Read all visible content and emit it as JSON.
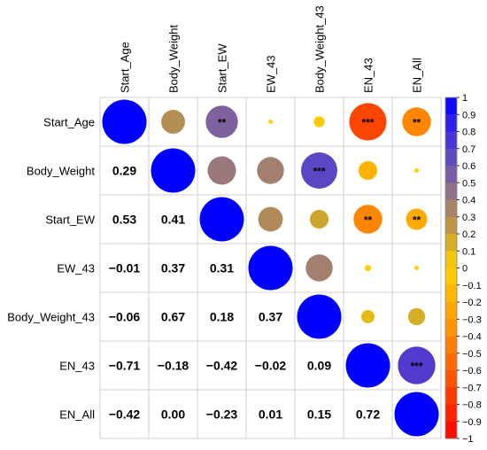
{
  "chart_data": {
    "type": "heatmap",
    "variables": [
      "Start_Age",
      "Body_Weight",
      "Start_EW",
      "EW_43",
      "Body_Weight_43",
      "EN_43",
      "EN_All"
    ],
    "matrix": [
      [
        1.0,
        0.29,
        0.53,
        -0.01,
        -0.06,
        -0.71,
        -0.42
      ],
      [
        0.29,
        1.0,
        0.41,
        0.37,
        0.67,
        -0.18,
        0.0
      ],
      [
        0.53,
        0.41,
        1.0,
        0.31,
        0.18,
        -0.42,
        -0.23
      ],
      [
        -0.01,
        0.37,
        0.31,
        1.0,
        0.37,
        -0.02,
        0.01
      ],
      [
        -0.06,
        0.67,
        0.18,
        0.37,
        1.0,
        0.09,
        0.15
      ],
      [
        -0.71,
        -0.18,
        -0.42,
        -0.02,
        0.09,
        1.0,
        0.72
      ],
      [
        -0.42,
        0.0,
        -0.23,
        0.01,
        0.15,
        0.72,
        1.0
      ]
    ],
    "lower_labels": [
      [
        null,
        null,
        null,
        null,
        null,
        null,
        null
      ],
      [
        "0.29",
        null,
        null,
        null,
        null,
        null,
        null
      ],
      [
        "0.53",
        "0.41",
        null,
        null,
        null,
        null,
        null
      ],
      [
        "−0.01",
        "0.37",
        "0.31",
        null,
        null,
        null,
        null
      ],
      [
        "−0.06",
        "0.67",
        "0.18",
        "0.37",
        null,
        null,
        null
      ],
      [
        "−0.71",
        "−0.18",
        "−0.42",
        "−0.02",
        "0.09",
        null,
        null
      ],
      [
        "−0.42",
        "0.00",
        "−0.23",
        "0.01",
        "0.15",
        "0.72",
        null
      ]
    ],
    "significance": [
      [
        "",
        "",
        "**",
        "",
        "",
        "***",
        "**"
      ],
      [
        "",
        "",
        "",
        "",
        "***",
        "",
        ""
      ],
      [
        "",
        "",
        "",
        "",
        "",
        "**",
        "**"
      ],
      [
        "",
        "",
        "",
        "",
        "",
        "",
        ""
      ],
      [
        "",
        "",
        "",
        "",
        "",
        "",
        ""
      ],
      [
        "",
        "",
        "",
        "",
        "",
        "",
        "***"
      ],
      [
        "",
        "",
        "",
        "",
        "",
        "",
        ""
      ]
    ],
    "colorbar": {
      "ticks": [
        "1",
        "0.9",
        "0.8",
        "0.7",
        "0.6",
        "0.5",
        "0.4",
        "0.3",
        "0.2",
        "0.1",
        "0",
        "−0.1",
        "−0.2",
        "−0.3",
        "−0.4",
        "−0.5",
        "−0.6",
        "−0.7",
        "−0.8",
        "−0.9",
        "−1"
      ],
      "range": [
        -1,
        1
      ]
    },
    "colors": {
      "pos_stops": [
        "#FFD200",
        "#C8A034",
        "#9C7A78",
        "#6E55B4",
        "#3D2AE0",
        "#0000FF"
      ],
      "neg_stops": [
        "#FFD200",
        "#FFB000",
        "#FF8A00",
        "#FF6000",
        "#FF3000",
        "#FF0000"
      ]
    }
  }
}
